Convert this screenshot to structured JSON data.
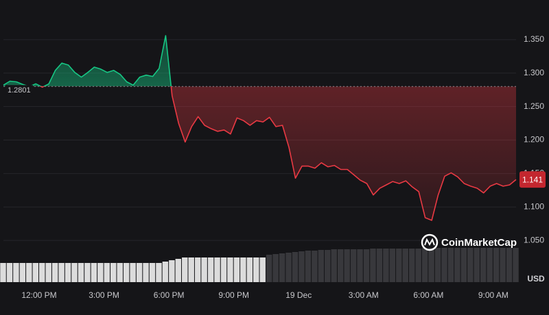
{
  "chart_data": {
    "type": "line",
    "series": [
      {
        "name": "Price",
        "color_up": "#16c784",
        "color_down": "#ea3943",
        "values": [
          1.282,
          1.288,
          1.287,
          1.283,
          1.28,
          1.284,
          1.279,
          1.284,
          1.304,
          1.315,
          1.312,
          1.301,
          1.294,
          1.301,
          1.309,
          1.306,
          1.301,
          1.304,
          1.298,
          1.287,
          1.282,
          1.294,
          1.297,
          1.295,
          1.307,
          1.356,
          1.266,
          1.225,
          1.197,
          1.22,
          1.235,
          1.222,
          1.217,
          1.213,
          1.215,
          1.209,
          1.233,
          1.229,
          1.222,
          1.229,
          1.227,
          1.234,
          1.22,
          1.222,
          1.189,
          1.143,
          1.161,
          1.161,
          1.158,
          1.166,
          1.16,
          1.162,
          1.156,
          1.156,
          1.148,
          1.14,
          1.135,
          1.118,
          1.128,
          1.133,
          1.138,
          1.135,
          1.139,
          1.13,
          1.123,
          1.084,
          1.08,
          1.118,
          1.146,
          1.151,
          1.145,
          1.135,
          1.131,
          1.128,
          1.121,
          1.131,
          1.135,
          1.131,
          1.133,
          1.141
        ]
      }
    ],
    "baseline": 1.2801,
    "xlim": [
      0,
      79
    ],
    "xticks": [
      {
        "value": 5.5,
        "label": "12:00 PM"
      },
      {
        "value": 15.5,
        "label": "3:00 PM"
      },
      {
        "value": 25.5,
        "label": "6:00 PM"
      },
      {
        "value": 35.5,
        "label": "9:00 PM"
      },
      {
        "value": 45.5,
        "label": "19 Dec"
      },
      {
        "value": 55.5,
        "label": "3:00 AM"
      },
      {
        "value": 65.5,
        "label": "6:00 AM"
      },
      {
        "value": 75.5,
        "label": "9:00 AM"
      }
    ],
    "ylim": [
      1.0,
      1.4
    ],
    "yticks": [
      {
        "value": 1.05,
        "label": "1.050"
      },
      {
        "value": 1.1,
        "label": "1.100"
      },
      {
        "value": 1.15,
        "label": "1.150"
      },
      {
        "value": 1.2,
        "label": "1.200"
      },
      {
        "value": 1.25,
        "label": "1.250"
      },
      {
        "value": 1.3,
        "label": "1.300"
      },
      {
        "value": 1.35,
        "label": "1.350"
      }
    ],
    "grid": true,
    "currency": "USD",
    "watermark": "CoinMarketCap",
    "volume": {
      "ylim": [
        0,
        50
      ],
      "series": [
        {
          "color": "#dcdcdc",
          "start": 0,
          "values": [
            28,
            28,
            28,
            28,
            28,
            28,
            28,
            28,
            28,
            28,
            28,
            28,
            28,
            28,
            28,
            28,
            28,
            28,
            28,
            28,
            28,
            28,
            28,
            28,
            28,
            30,
            32,
            34,
            36,
            36,
            36,
            36,
            36,
            36,
            36,
            36,
            36,
            36,
            36,
            36,
            36
          ]
        },
        {
          "color": "#38383c",
          "start": 41,
          "values": [
            40,
            41,
            42,
            43,
            44,
            45,
            46,
            46,
            47,
            47,
            48,
            48,
            48,
            48,
            48,
            48,
            49,
            49,
            49,
            49,
            49,
            49,
            49,
            49,
            50,
            50,
            50,
            50,
            50,
            50,
            50,
            50,
            50,
            50,
            50,
            50,
            50,
            50,
            50
          ]
        }
      ]
    }
  }
}
